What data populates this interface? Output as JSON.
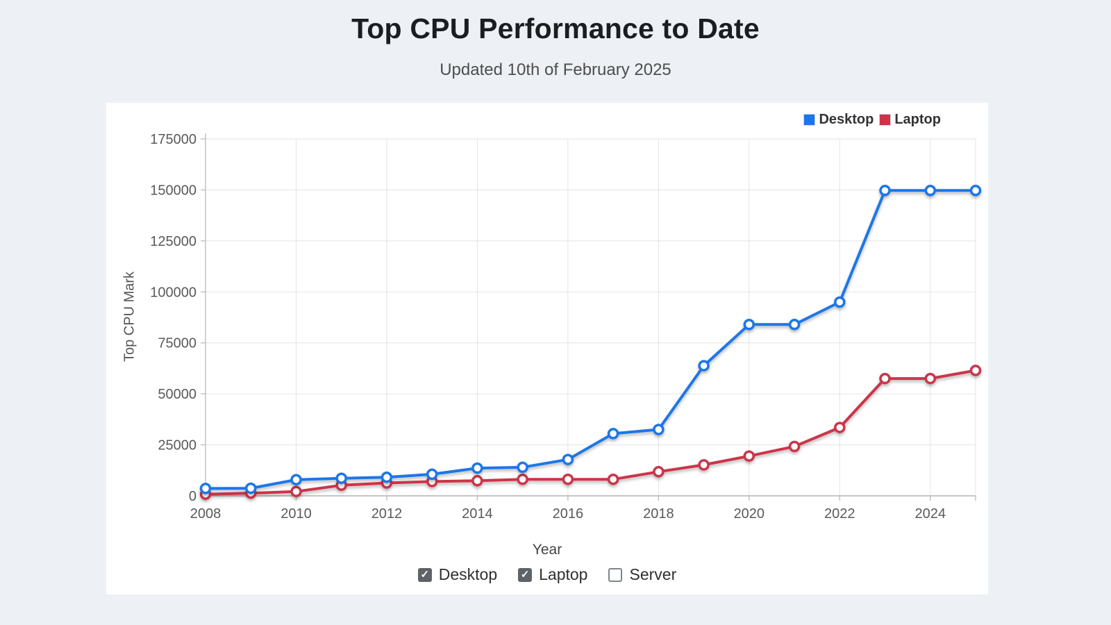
{
  "header": {
    "title": "Top CPU Performance to Date",
    "subtitle": "Updated 10th of February 2025"
  },
  "chart_data": {
    "type": "line",
    "title": "Top CPU Performance to Date",
    "xlabel": "Year",
    "ylabel": "Top CPU Mark",
    "x": [
      2008,
      2009,
      2010,
      2011,
      2012,
      2013,
      2014,
      2015,
      2016,
      2017,
      2018,
      2019,
      2020,
      2021,
      2022,
      2023,
      2024,
      2025
    ],
    "series": [
      {
        "name": "Desktop",
        "color": "#1b76e8",
        "values": [
          3600,
          3700,
          7900,
          8600,
          9100,
          10600,
          13600,
          14000,
          17800,
          30500,
          32500,
          63800,
          84000,
          84000,
          95000,
          149700,
          149700,
          149700
        ]
      },
      {
        "name": "Laptop",
        "color": "#cb3449",
        "values": [
          800,
          1300,
          2100,
          5200,
          6300,
          7000,
          7400,
          8100,
          8100,
          8100,
          11800,
          15200,
          19500,
          24200,
          33500,
          57500,
          57500,
          61500
        ]
      }
    ],
    "ylim": [
      0,
      175000
    ],
    "yticks": [
      0,
      25000,
      50000,
      75000,
      100000,
      125000,
      150000,
      175000
    ],
    "xticks": [
      2008,
      2010,
      2012,
      2014,
      2016,
      2018,
      2020,
      2022,
      2024
    ],
    "grid": true,
    "legend_position": "top-right",
    "marker": "open-circle"
  },
  "controls": {
    "checkboxes": [
      {
        "label": "Desktop",
        "checked": true
      },
      {
        "label": "Laptop",
        "checked": true
      },
      {
        "label": "Server",
        "checked": false
      }
    ],
    "check_glyph": "✓"
  },
  "colors": {
    "page_background": "#edf1f6",
    "card_background": "#ffffff",
    "grid_line": "#e3e3e3",
    "axis_line": "#c2c2c2",
    "bottom_axis_line": "#b3b3b3",
    "tick_text": "#595959",
    "legend_text": "#333333"
  }
}
